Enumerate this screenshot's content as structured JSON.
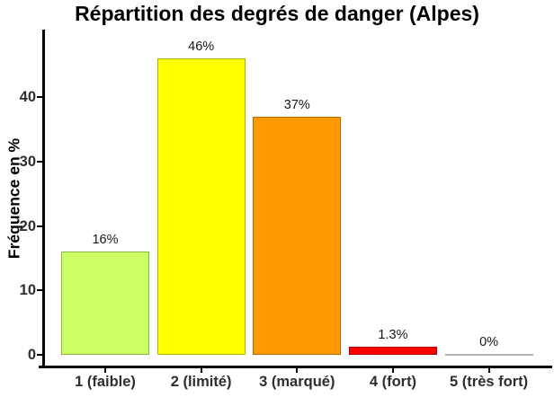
{
  "chart_data": {
    "type": "bar",
    "title": "Répartition des degrés de danger (Alpes)",
    "ylabel": "Fréquence en %",
    "xlabel": "",
    "categories": [
      "1 (faible)",
      "2 (limité)",
      "3 (marqué)",
      "4 (fort)",
      "5 (très fort)"
    ],
    "values": [
      16,
      46,
      37,
      1.3,
      0
    ],
    "bar_labels": [
      "16%",
      "46%",
      "37%",
      "1.3%",
      "0%"
    ],
    "bar_colors": [
      "#ccff66",
      "#ffff00",
      "#ff9900",
      "#ff0000",
      "#ffffff"
    ],
    "zero_bar_line_color": "#b3b3b3",
    "ytick_labels": [
      "0",
      "10",
      "20",
      "30",
      "40"
    ],
    "ytick_values": [
      0,
      10,
      20,
      30,
      40
    ],
    "ylim": [
      0,
      50
    ],
    "grid": false,
    "legend": false
  }
}
